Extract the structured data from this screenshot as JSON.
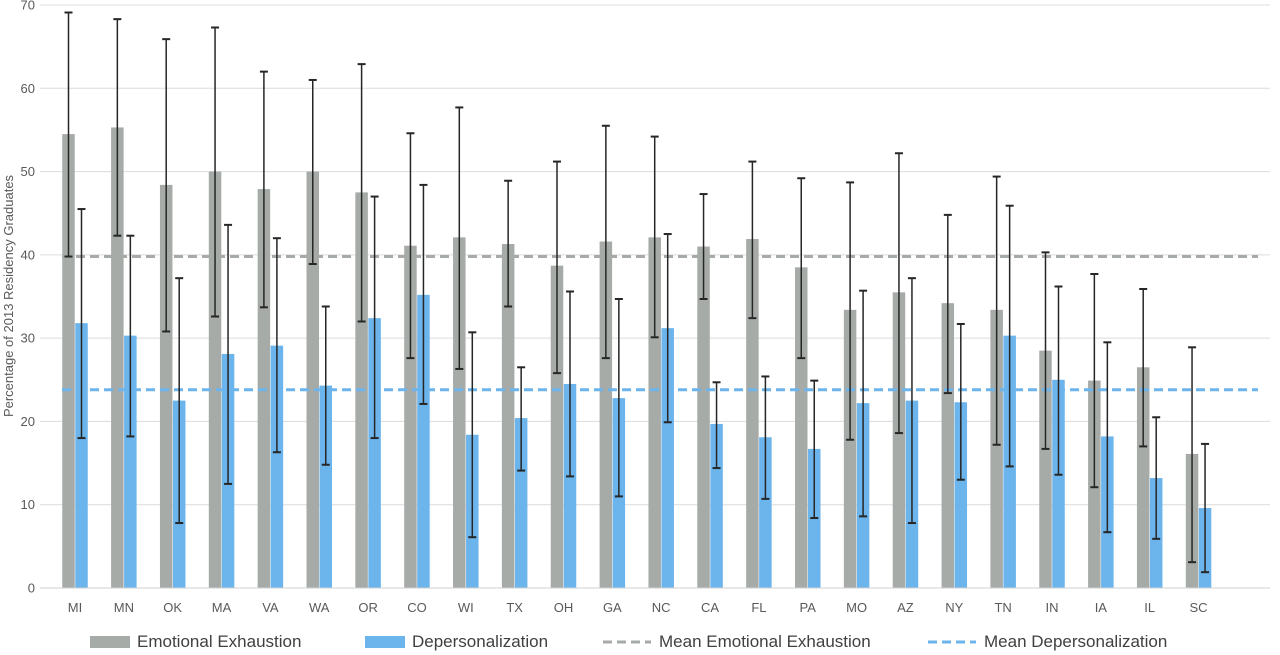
{
  "chart_data": {
    "type": "bar",
    "ylabel": "Percentage of 2013 Residency Graduates",
    "xlabel": "",
    "ylim": [
      0,
      70
    ],
    "yticks": [
      0,
      10,
      20,
      30,
      40,
      50,
      60,
      70
    ],
    "grid": true,
    "legend_position": "bottom",
    "categories": [
      "MI",
      "MN",
      "OK",
      "MA",
      "VA",
      "WA",
      "OR",
      "CO",
      "WI",
      "TX",
      "OH",
      "GA",
      "NC",
      "CA",
      "FL",
      "PA",
      "MO",
      "AZ",
      "NY",
      "TN",
      "IN",
      "IA",
      "IL",
      "SC"
    ],
    "series": [
      {
        "name": "Emotional Exhaustion",
        "color": "#a6aba8",
        "values": [
          54.5,
          55.3,
          48.4,
          50.0,
          47.9,
          50.0,
          47.5,
          41.1,
          42.1,
          41.3,
          38.7,
          41.6,
          42.1,
          41.0,
          41.9,
          38.5,
          33.4,
          35.5,
          34.2,
          33.4,
          28.5,
          24.9,
          26.5,
          16.1
        ],
        "error_low": [
          39.8,
          42.3,
          30.8,
          32.6,
          33.7,
          38.9,
          32.0,
          27.6,
          26.3,
          33.8,
          25.8,
          27.6,
          30.1,
          34.7,
          32.4,
          27.6,
          17.8,
          18.6,
          23.4,
          17.2,
          16.7,
          12.1,
          17.0,
          3.1
        ],
        "error_high": [
          69.1,
          68.3,
          65.9,
          67.3,
          62.0,
          61.0,
          62.9,
          54.6,
          57.7,
          48.9,
          51.2,
          55.5,
          54.2,
          47.3,
          51.2,
          49.2,
          48.7,
          52.2,
          44.8,
          49.4,
          40.3,
          37.7,
          35.9,
          28.9
        ]
      },
      {
        "name": "Depersonalization",
        "color": "#6cb4ec",
        "values": [
          31.8,
          30.3,
          22.5,
          28.1,
          29.1,
          24.3,
          32.4,
          35.2,
          18.4,
          20.4,
          24.5,
          22.8,
          31.2,
          19.7,
          18.1,
          16.7,
          22.2,
          22.5,
          22.3,
          30.3,
          25.0,
          18.2,
          13.2,
          9.6
        ],
        "error_low": [
          18.0,
          18.2,
          7.8,
          12.5,
          16.3,
          14.8,
          18.0,
          22.1,
          6.1,
          14.1,
          13.4,
          11.0,
          19.9,
          14.4,
          10.7,
          8.4,
          8.6,
          7.8,
          13.0,
          14.6,
          13.6,
          6.7,
          5.9,
          1.9
        ],
        "error_high": [
          45.5,
          42.3,
          37.2,
          43.6,
          42.0,
          33.8,
          47.0,
          48.4,
          30.7,
          26.5,
          35.6,
          34.7,
          42.5,
          24.7,
          25.4,
          24.9,
          35.7,
          37.2,
          31.7,
          45.9,
          36.2,
          29.5,
          20.5,
          17.3
        ]
      }
    ],
    "reference_lines": [
      {
        "name": "Mean Emotional Exhaustion",
        "value": 39.8,
        "color": "#a6aba8",
        "style": "dashed"
      },
      {
        "name": "Mean Depersonalization",
        "value": 23.8,
        "color": "#6cb4ec",
        "style": "dashed"
      }
    ]
  }
}
